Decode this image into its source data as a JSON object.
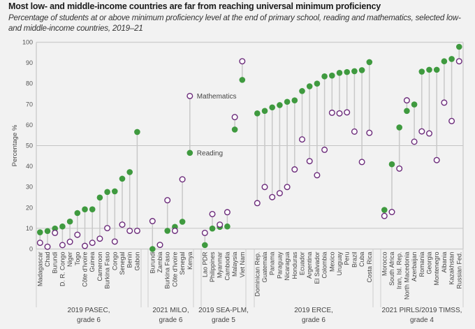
{
  "title": "Most low- and middle-income countries are far from reaching universal minimum proficiency",
  "subtitle": "Percentage of students at or above minimum proficiency level at the end of primary school, reading and mathematics, selected low- and middle-income countries, 2019–21",
  "colors": {
    "reading": "#3f9a3f",
    "mathematics": "#6b2a7a",
    "background": "#f2f2f2",
    "stem": "#c8c8c8",
    "grid": "#c4c4c4"
  },
  "chart_data": {
    "type": "scatter",
    "subtype": "dumbbell",
    "title": "Most low- and middle-income countries are far from reaching universal minimum proficiency",
    "ylabel": "Percentage %",
    "xlabel": "",
    "ylim": [
      0,
      100
    ],
    "yticks": [
      0,
      10,
      20,
      30,
      40,
      50,
      60,
      70,
      80,
      90,
      100
    ],
    "gridlines_at": [
      10,
      50
    ],
    "annotations": [
      {
        "text": "Mathematics",
        "series": "Mathematics",
        "category": "Kenya"
      },
      {
        "text": "Reading",
        "series": "Reading",
        "category": "Kenya"
      }
    ],
    "series_names": [
      "Reading",
      "Mathematics"
    ],
    "groups": [
      {
        "label": "2019 PASEC,",
        "label2": "grade 6",
        "categories": [
          "Madagascar",
          "Chad",
          "Burundi",
          "D. R. Congo",
          "Niger",
          "Togo",
          "Côte d'Ivoire",
          "Guinea",
          "Cameroon",
          "Burkina Faso",
          "Congo",
          "Senegal",
          "Benin",
          "Gabon"
        ],
        "reading": [
          8.1,
          8.7,
          9.9,
          10.9,
          13.3,
          17.4,
          19.2,
          19.2,
          24.9,
          27.6,
          27.9,
          34.0,
          37.2,
          56.6
        ],
        "mathematics": [
          3.0,
          1.1,
          7.8,
          1.9,
          3.5,
          6.9,
          1.5,
          3.0,
          5.0,
          10.1,
          3.6,
          11.8,
          8.8,
          8.8
        ]
      },
      {
        "label": "2021 MILO,",
        "label2": "grade 6",
        "categories": [
          "Burundi",
          "Zambia",
          "Burkina Faso",
          "Côte d'Ivoire",
          "Senegal",
          "Kenya"
        ],
        "reading": [
          0.0,
          2.0,
          8.8,
          10.7,
          13.2,
          46.5
        ],
        "mathematics": [
          13.5,
          2.0,
          23.6,
          8.8,
          33.7,
          74.0
        ]
      },
      {
        "label": "2019 SEA-PLM,",
        "label2": "grade 5",
        "categories": [
          "Lao PDR",
          "Philippines",
          "Myanmar",
          "Cambodia",
          "Malaysia",
          "Viet Nam"
        ],
        "reading": [
          1.9,
          9.9,
          10.7,
          10.9,
          57.8,
          81.8
        ],
        "mathematics": [
          7.8,
          16.9,
          11.8,
          17.8,
          63.8,
          90.8
        ]
      },
      {
        "label": "2019 ERCE,",
        "label2": "grade 6",
        "categories": [
          "Dominican Rep.",
          "Guatemala",
          "Panama",
          "Paraguay",
          "Nicaragua",
          "Honduras",
          "Ecuador",
          "Argentina",
          "El Salvador",
          "Colombia",
          "Mexico",
          "Uruguay",
          "Peru",
          "Brazil",
          "Cuba",
          "Costa Rica"
        ],
        "reading": [
          65.6,
          66.8,
          68.5,
          69.6,
          71.2,
          71.9,
          76.4,
          78.7,
          80.0,
          83.5,
          83.9,
          85.2,
          85.6,
          86.0,
          86.5,
          90.4
        ],
        "mathematics": [
          22.2,
          30.0,
          25.1,
          27.0,
          30.0,
          38.5,
          53.0,
          42.5,
          35.7,
          48.0,
          65.9,
          65.6,
          66.1,
          56.8,
          42.1,
          56.2
        ]
      },
      {
        "label": "2021 PIRLS/2019 TIMSS,",
        "label2": "grade 4",
        "categories": [
          "Morocco",
          "South Africa",
          "Iran, Isl. Rep.",
          "North Macedonia",
          "Azerbaijan",
          "Romania",
          "Georgia",
          "Montenegro",
          "Albania",
          "Kazakhstan",
          "Russian Fed."
        ],
        "reading": [
          18.9,
          41.0,
          58.8,
          66.8,
          69.9,
          85.8,
          86.7,
          86.7,
          90.8,
          91.9,
          97.8
        ],
        "mathematics": [
          16.0,
          17.9,
          38.9,
          71.9,
          51.9,
          56.9,
          55.9,
          43.0,
          70.8,
          61.9,
          90.8
        ]
      }
    ]
  }
}
